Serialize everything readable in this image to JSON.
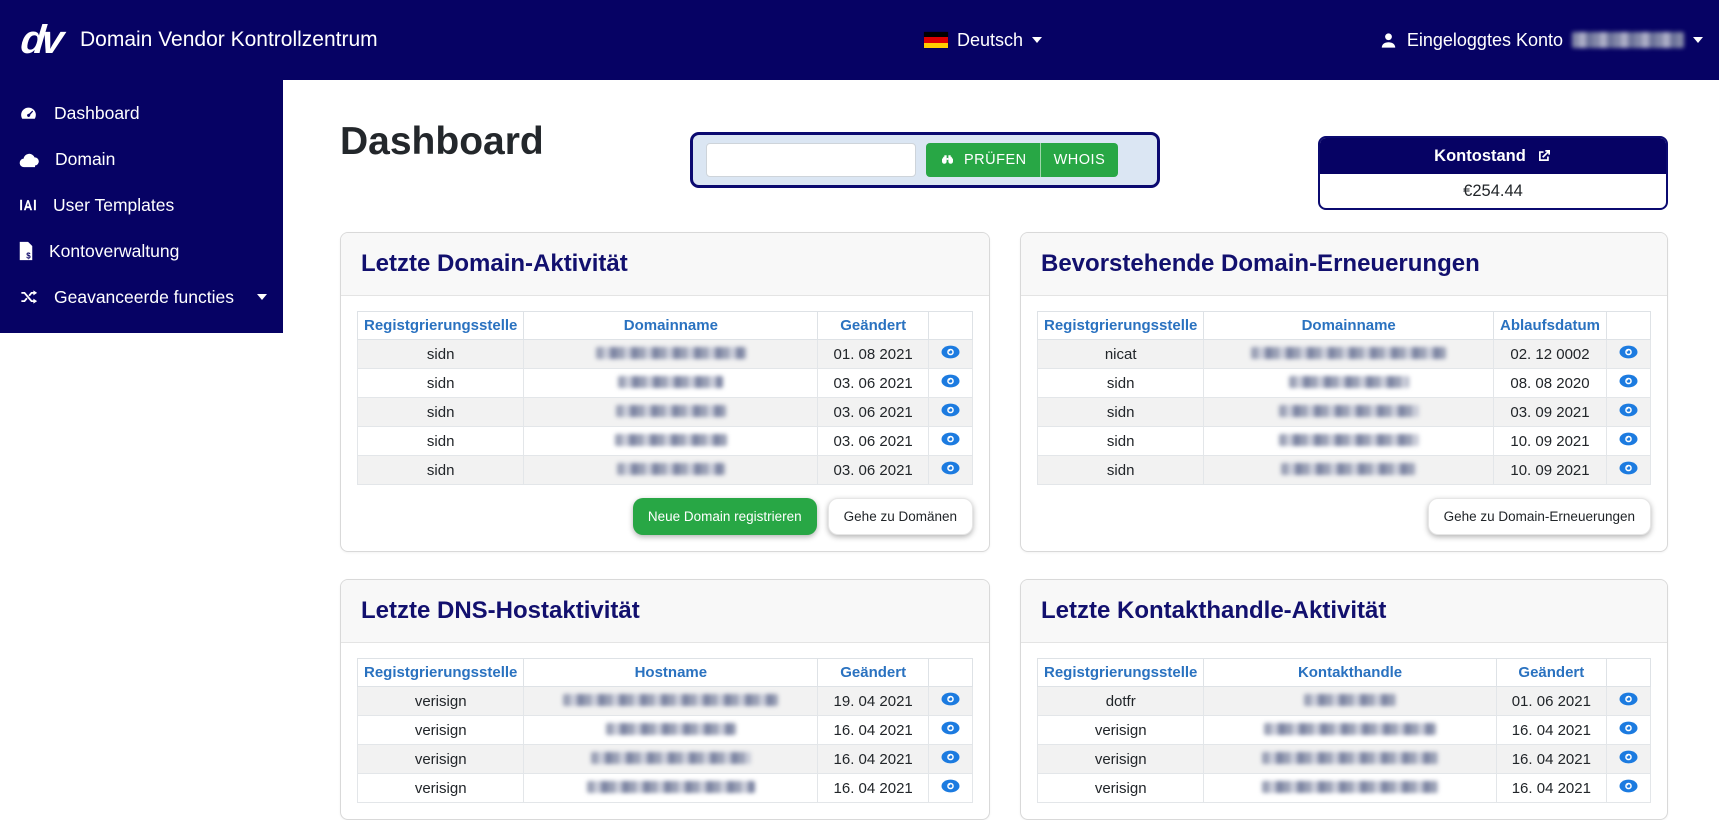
{
  "header": {
    "logo_text": "dv",
    "brand": "Domain Vendor Kontrollzentrum",
    "language": {
      "label": "Deutsch",
      "flag_icon": "german-flag-icon"
    },
    "account": {
      "label": "Eingeloggtes Konto",
      "value_redacted": true,
      "icon": "user-icon"
    }
  },
  "sidebar": {
    "items": [
      {
        "label": "Dashboard",
        "icon": "gauge-icon",
        "expandable": false
      },
      {
        "label": "Domain",
        "icon": "cloud-icon",
        "expandable": false
      },
      {
        "label": "User Templates",
        "icon": "templates-icon",
        "expandable": false
      },
      {
        "label": "Kontoverwaltung",
        "icon": "invoice-dollar-icon",
        "expandable": false
      },
      {
        "label": "Geavanceerde functies",
        "icon": "shuffle-icon",
        "expandable": true
      }
    ]
  },
  "main": {
    "page_title": "Dashboard",
    "domain_check": {
      "input_value": "",
      "input_placeholder": "",
      "check_label": "PRÜFEN",
      "whois_label": "WHOIS",
      "icon": "binoculars-icon"
    },
    "balance": {
      "title": "Kontostand",
      "icon": "external-link-icon",
      "amount": "€254.44"
    }
  },
  "cards": [
    {
      "title": "Letzte Domain-Aktivität",
      "columns": [
        "Registgrierungsstelle",
        "Domainname",
        "Geändert"
      ],
      "rows": [
        {
          "registry": "sidn",
          "name_redacted": true,
          "date": "01. 08 2021"
        },
        {
          "registry": "sidn",
          "name_redacted": true,
          "date": "03. 06 2021"
        },
        {
          "registry": "sidn",
          "name_redacted": true,
          "date": "03. 06 2021"
        },
        {
          "registry": "sidn",
          "name_redacted": true,
          "date": "03. 06 2021"
        },
        {
          "registry": "sidn",
          "name_redacted": true,
          "date": "03. 06 2021"
        }
      ],
      "buttons": [
        {
          "label": "Neue Domain registrieren",
          "style": "green"
        },
        {
          "label": "Gehe zu Domänen",
          "style": "white"
        }
      ]
    },
    {
      "title": "Bevorstehende Domain-Erneuerungen",
      "columns": [
        "Registgrierungsstelle",
        "Domainname",
        "Ablaufsdatum"
      ],
      "rows": [
        {
          "registry": "nicat",
          "name_redacted": true,
          "date": "02. 12 0002"
        },
        {
          "registry": "sidn",
          "name_redacted": true,
          "date": "08. 08 2020"
        },
        {
          "registry": "sidn",
          "name_redacted": true,
          "date": "03. 09 2021"
        },
        {
          "registry": "sidn",
          "name_redacted": true,
          "date": "10. 09 2021"
        },
        {
          "registry": "sidn",
          "name_redacted": true,
          "date": "10. 09 2021"
        }
      ],
      "buttons": [
        {
          "label": "Gehe zu Domain-Erneuerungen",
          "style": "white"
        }
      ]
    },
    {
      "title": "Letzte DNS-Hostaktivität",
      "columns": [
        "Registgrierungsstelle",
        "Hostname",
        "Geändert"
      ],
      "rows": [
        {
          "registry": "verisign",
          "name_redacted": true,
          "date": "19. 04 2021"
        },
        {
          "registry": "verisign",
          "name_redacted": true,
          "date": "16. 04 2021"
        },
        {
          "registry": "verisign",
          "name_redacted": true,
          "date": "16. 04 2021"
        },
        {
          "registry": "verisign",
          "name_redacted": true,
          "date": "16. 04 2021"
        }
      ],
      "buttons": []
    },
    {
      "title": "Letzte Kontakthandle-Aktivität",
      "columns": [
        "Registgrierungsstelle",
        "Kontakthandle",
        "Geändert"
      ],
      "rows": [
        {
          "registry": "dotfr",
          "name_redacted": true,
          "date": "01. 06 2021"
        },
        {
          "registry": "verisign",
          "name_redacted": true,
          "date": "16. 04 2021"
        },
        {
          "registry": "verisign",
          "name_redacted": true,
          "date": "16. 04 2021"
        },
        {
          "registry": "verisign",
          "name_redacted": true,
          "date": "16. 04 2021"
        }
      ],
      "buttons": []
    }
  ],
  "colors": {
    "navy": "#060264",
    "table_header_blue": "#2a72c0",
    "eye_blue": "#1c7be0",
    "success_green": "#28a745",
    "panel_blue": "#dbe6f3"
  }
}
